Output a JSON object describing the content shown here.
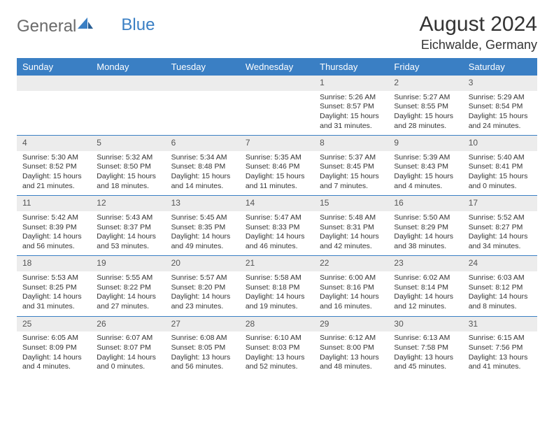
{
  "brand": {
    "part1": "General",
    "part2": "Blue"
  },
  "title": "August 2024",
  "location": "Eichwalde, Germany",
  "colors": {
    "header_bg": "#3a7fc4",
    "header_text": "#ffffff",
    "daynum_bg": "#ececec",
    "text": "#333333",
    "divider": "#3a7fc4"
  },
  "day_headers": [
    "Sunday",
    "Monday",
    "Tuesday",
    "Wednesday",
    "Thursday",
    "Friday",
    "Saturday"
  ],
  "weeks": [
    [
      null,
      null,
      null,
      null,
      {
        "n": "1",
        "sr": "5:26 AM",
        "ss": "8:57 PM",
        "dl": "15 hours and 31 minutes."
      },
      {
        "n": "2",
        "sr": "5:27 AM",
        "ss": "8:55 PM",
        "dl": "15 hours and 28 minutes."
      },
      {
        "n": "3",
        "sr": "5:29 AM",
        "ss": "8:54 PM",
        "dl": "15 hours and 24 minutes."
      }
    ],
    [
      {
        "n": "4",
        "sr": "5:30 AM",
        "ss": "8:52 PM",
        "dl": "15 hours and 21 minutes."
      },
      {
        "n": "5",
        "sr": "5:32 AM",
        "ss": "8:50 PM",
        "dl": "15 hours and 18 minutes."
      },
      {
        "n": "6",
        "sr": "5:34 AM",
        "ss": "8:48 PM",
        "dl": "15 hours and 14 minutes."
      },
      {
        "n": "7",
        "sr": "5:35 AM",
        "ss": "8:46 PM",
        "dl": "15 hours and 11 minutes."
      },
      {
        "n": "8",
        "sr": "5:37 AM",
        "ss": "8:45 PM",
        "dl": "15 hours and 7 minutes."
      },
      {
        "n": "9",
        "sr": "5:39 AM",
        "ss": "8:43 PM",
        "dl": "15 hours and 4 minutes."
      },
      {
        "n": "10",
        "sr": "5:40 AM",
        "ss": "8:41 PM",
        "dl": "15 hours and 0 minutes."
      }
    ],
    [
      {
        "n": "11",
        "sr": "5:42 AM",
        "ss": "8:39 PM",
        "dl": "14 hours and 56 minutes."
      },
      {
        "n": "12",
        "sr": "5:43 AM",
        "ss": "8:37 PM",
        "dl": "14 hours and 53 minutes."
      },
      {
        "n": "13",
        "sr": "5:45 AM",
        "ss": "8:35 PM",
        "dl": "14 hours and 49 minutes."
      },
      {
        "n": "14",
        "sr": "5:47 AM",
        "ss": "8:33 PM",
        "dl": "14 hours and 46 minutes."
      },
      {
        "n": "15",
        "sr": "5:48 AM",
        "ss": "8:31 PM",
        "dl": "14 hours and 42 minutes."
      },
      {
        "n": "16",
        "sr": "5:50 AM",
        "ss": "8:29 PM",
        "dl": "14 hours and 38 minutes."
      },
      {
        "n": "17",
        "sr": "5:52 AM",
        "ss": "8:27 PM",
        "dl": "14 hours and 34 minutes."
      }
    ],
    [
      {
        "n": "18",
        "sr": "5:53 AM",
        "ss": "8:25 PM",
        "dl": "14 hours and 31 minutes."
      },
      {
        "n": "19",
        "sr": "5:55 AM",
        "ss": "8:22 PM",
        "dl": "14 hours and 27 minutes."
      },
      {
        "n": "20",
        "sr": "5:57 AM",
        "ss": "8:20 PM",
        "dl": "14 hours and 23 minutes."
      },
      {
        "n": "21",
        "sr": "5:58 AM",
        "ss": "8:18 PM",
        "dl": "14 hours and 19 minutes."
      },
      {
        "n": "22",
        "sr": "6:00 AM",
        "ss": "8:16 PM",
        "dl": "14 hours and 16 minutes."
      },
      {
        "n": "23",
        "sr": "6:02 AM",
        "ss": "8:14 PM",
        "dl": "14 hours and 12 minutes."
      },
      {
        "n": "24",
        "sr": "6:03 AM",
        "ss": "8:12 PM",
        "dl": "14 hours and 8 minutes."
      }
    ],
    [
      {
        "n": "25",
        "sr": "6:05 AM",
        "ss": "8:09 PM",
        "dl": "14 hours and 4 minutes."
      },
      {
        "n": "26",
        "sr": "6:07 AM",
        "ss": "8:07 PM",
        "dl": "14 hours and 0 minutes."
      },
      {
        "n": "27",
        "sr": "6:08 AM",
        "ss": "8:05 PM",
        "dl": "13 hours and 56 minutes."
      },
      {
        "n": "28",
        "sr": "6:10 AM",
        "ss": "8:03 PM",
        "dl": "13 hours and 52 minutes."
      },
      {
        "n": "29",
        "sr": "6:12 AM",
        "ss": "8:00 PM",
        "dl": "13 hours and 48 minutes."
      },
      {
        "n": "30",
        "sr": "6:13 AM",
        "ss": "7:58 PM",
        "dl": "13 hours and 45 minutes."
      },
      {
        "n": "31",
        "sr": "6:15 AM",
        "ss": "7:56 PM",
        "dl": "13 hours and 41 minutes."
      }
    ]
  ],
  "labels": {
    "sunrise": "Sunrise:",
    "sunset": "Sunset:",
    "daylight": "Daylight:"
  }
}
